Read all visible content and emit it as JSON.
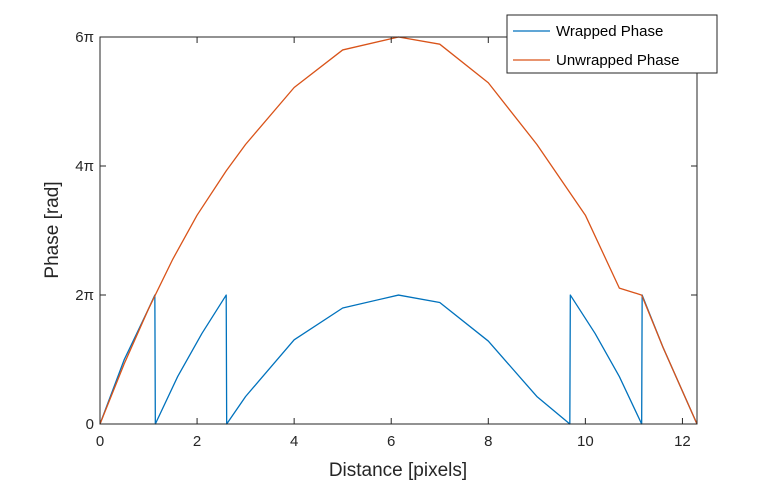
{
  "chart_data": {
    "type": "line",
    "xlabel": "Distance [pixels]",
    "ylabel": "Phase [rad]",
    "xlim": [
      0,
      12.3
    ],
    "ylim": [
      0,
      18.85
    ],
    "grid": false,
    "legend_position": "top-right",
    "x_ticks": [
      {
        "value": 0,
        "label": "0"
      },
      {
        "value": 2,
        "label": "2"
      },
      {
        "value": 4,
        "label": "4"
      },
      {
        "value": 6,
        "label": "6"
      },
      {
        "value": 8,
        "label": "8"
      },
      {
        "value": 10,
        "label": "10"
      },
      {
        "value": 12,
        "label": "12"
      }
    ],
    "y_ticks": [
      {
        "value": 0,
        "label": "0"
      },
      {
        "value": 6.2832,
        "label": "2π"
      },
      {
        "value": 12.5664,
        "label": "4π"
      },
      {
        "value": 18.8496,
        "label": "6π"
      }
    ],
    "series": [
      {
        "name": "Wrapped Phase",
        "color": "#0072BD",
        "x": [
          0,
          0.5,
          1.0,
          1.13,
          1.14,
          1.6,
          2.1,
          2.6,
          2.61,
          3.0,
          4.0,
          5.0,
          6.15,
          7.0,
          8.0,
          9.0,
          9.68,
          9.69,
          10.2,
          10.7,
          11.16,
          11.17,
          11.6,
          12.3
        ],
        "y": [
          0,
          3.14,
          5.61,
          6.28,
          0,
          2.31,
          4.41,
          6.28,
          0,
          1.34,
          4.1,
          5.65,
          6.28,
          5.92,
          4.04,
          1.34,
          0,
          6.28,
          4.41,
          2.31,
          0,
          6.28,
          3.73,
          0
        ]
      },
      {
        "name": "Unwrapped Phase",
        "color": "#D95319",
        "x": [
          0,
          0.5,
          1.0,
          1.5,
          2.0,
          2.6,
          3.0,
          4.0,
          5.0,
          6.15,
          7.0,
          8.0,
          9.0,
          10.0,
          10.7,
          11.16,
          11.6,
          12.3
        ],
        "y": [
          0,
          2.94,
          5.61,
          8.03,
          10.17,
          12.33,
          13.62,
          16.39,
          18.22,
          18.85,
          18.5,
          16.62,
          13.62,
          10.17,
          6.62,
          6.28,
          3.73,
          0
        ]
      }
    ]
  }
}
